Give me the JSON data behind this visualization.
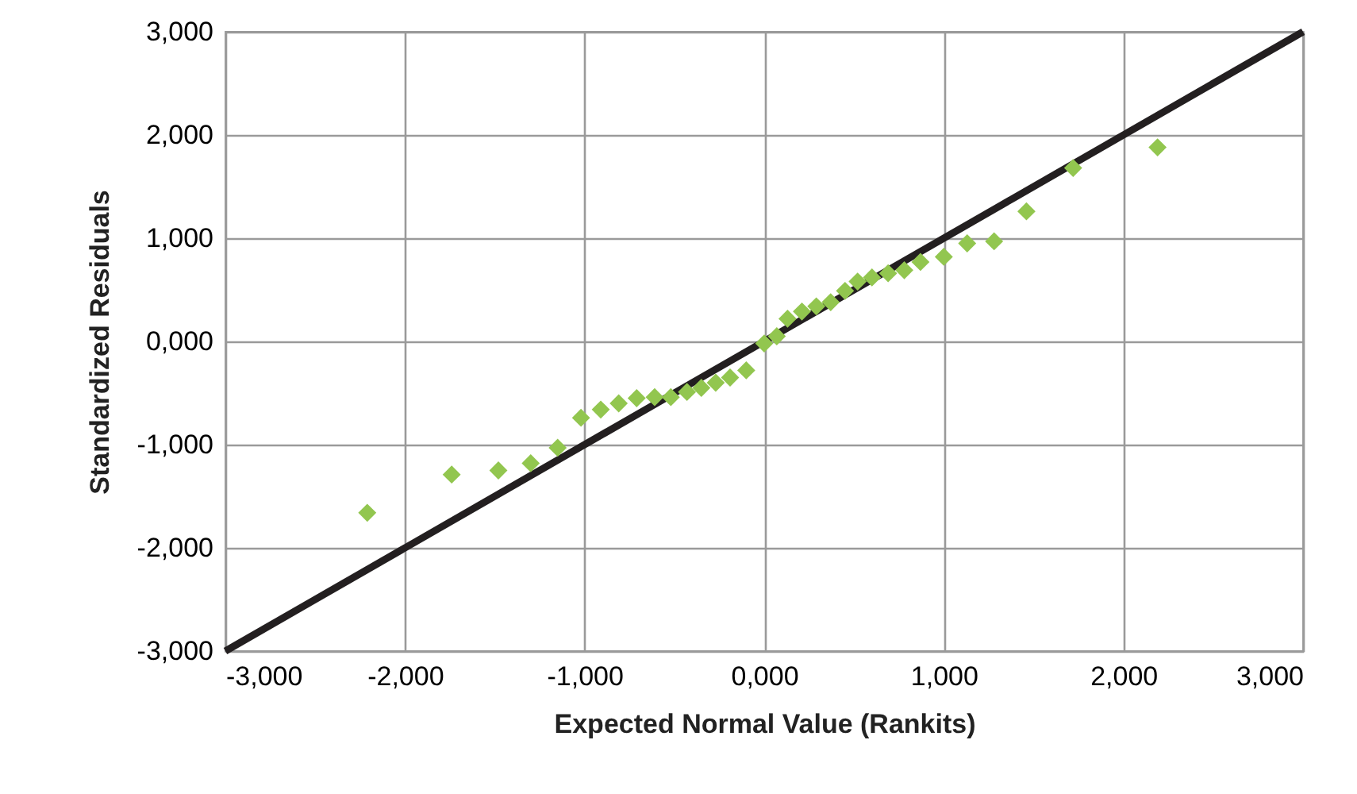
{
  "chart_data": {
    "type": "scatter",
    "xlabel": "Expected Normal Value (Rankits)",
    "ylabel": "Standardized Residuals",
    "xlim": [
      -3,
      3
    ],
    "ylim": [
      -3,
      3
    ],
    "xticks": [
      {
        "value": -3,
        "label": "-3,000"
      },
      {
        "value": -2,
        "label": "-2,000"
      },
      {
        "value": -1,
        "label": "-1,000"
      },
      {
        "value": 0,
        "label": "0,000"
      },
      {
        "value": 1,
        "label": "1,000"
      },
      {
        "value": 2,
        "label": "2,000"
      },
      {
        "value": 3,
        "label": "3,000"
      }
    ],
    "yticks": [
      {
        "value": -3,
        "label": "-3,000"
      },
      {
        "value": -2,
        "label": "-2,000"
      },
      {
        "value": -1,
        "label": "-1,000"
      },
      {
        "value": 0,
        "label": "0,000"
      },
      {
        "value": 1,
        "label": "1,000"
      },
      {
        "value": 2,
        "label": "2,000"
      },
      {
        "value": 3,
        "label": "3,000"
      }
    ],
    "grid": true,
    "marker": "diamond",
    "series": [
      {
        "color": "#92c64f",
        "x": [
          -2.21,
          -1.74,
          -1.48,
          -1.3,
          -1.15,
          -1.02,
          -0.91,
          -0.81,
          -0.71,
          -0.61,
          -0.52,
          -0.43,
          -0.35,
          -0.27,
          -0.19,
          -0.1,
          0.0,
          0.07,
          0.13,
          0.21,
          0.29,
          0.37,
          0.45,
          0.52,
          0.6,
          0.69,
          0.78,
          0.87,
          1.0,
          1.13,
          1.28,
          1.46,
          1.72,
          2.19
        ],
        "values": [
          -1.66,
          -1.29,
          -1.25,
          -1.18,
          -1.03,
          -0.74,
          -0.66,
          -0.6,
          -0.55,
          -0.54,
          -0.54,
          -0.49,
          -0.45,
          -0.4,
          -0.35,
          -0.28,
          -0.02,
          0.05,
          0.22,
          0.29,
          0.34,
          0.38,
          0.49,
          0.58,
          0.62,
          0.66,
          0.69,
          0.77,
          0.82,
          0.95,
          0.97,
          1.26,
          1.68,
          1.88
        ]
      },
      {
        "type": "line",
        "color": "#231f20",
        "line_style": "solid",
        "marker": "none",
        "x": [
          -3,
          3
        ],
        "values": [
          -3,
          3
        ]
      }
    ]
  }
}
